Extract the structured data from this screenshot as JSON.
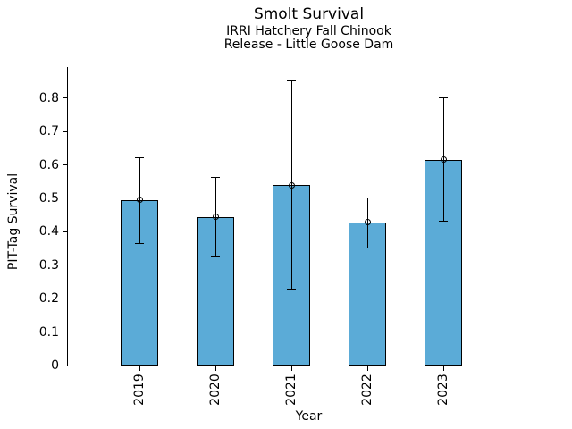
{
  "figure": {
    "title": "Smolt Survival",
    "subtitle_lines": [
      "IRRI Hatchery Fall Chinook",
      "Release - Little Goose Dam"
    ]
  },
  "chart_data": {
    "type": "bar",
    "title": "Smolt Survival",
    "subtitle": "IRRI Hatchery Fall Chinook\nRelease - Little Goose Dam",
    "xlabel": "Year",
    "ylabel": "PIT-Tag Survival",
    "categories": [
      "2019",
      "2020",
      "2021",
      "2022",
      "2023"
    ],
    "values": [
      0.495,
      0.445,
      0.54,
      0.428,
      0.616
    ],
    "error_low": [
      0.366,
      0.328,
      0.231,
      0.354,
      0.434
    ],
    "error_high": [
      0.624,
      0.563,
      0.852,
      0.502,
      0.801
    ],
    "ylim": [
      0,
      0.89
    ],
    "yticks": [
      0,
      0.1,
      0.2,
      0.3,
      0.4,
      0.5,
      0.6,
      0.7,
      0.8
    ],
    "ytick_labels": [
      "0",
      "0.1",
      "0.2",
      "0.3",
      "0.4",
      "0.5",
      "0.6",
      "0.7",
      "0.8"
    ],
    "grid": false,
    "legend": "none",
    "bar_color": "#5BABD7",
    "bar_edge_color": "#000000",
    "error_color": "#000000",
    "marker": "open-circle"
  }
}
